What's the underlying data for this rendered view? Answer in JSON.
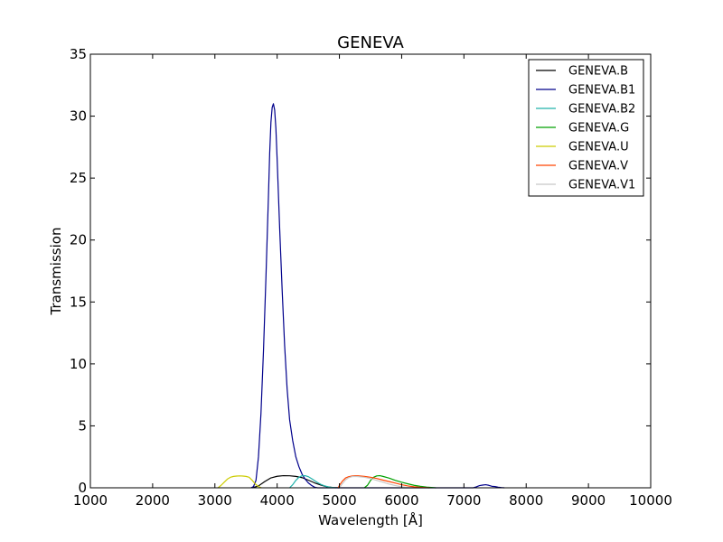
{
  "chart_data": {
    "type": "line",
    "title": "GENEVA",
    "xlabel": "Wavelength [Å]",
    "ylabel": "Transmission",
    "xlim": [
      1000,
      10000
    ],
    "ylim": [
      0,
      35
    ],
    "xticks": [
      1000,
      2000,
      3000,
      4000,
      5000,
      6000,
      7000,
      8000,
      9000,
      10000
    ],
    "yticks": [
      0,
      5,
      10,
      15,
      20,
      25,
      30,
      35
    ],
    "grid": false,
    "legend_position": "top-right",
    "series": [
      {
        "name": "GENEVA.B",
        "color": "#000000",
        "points": [
          [
            3600,
            0
          ],
          [
            3700,
            0.15
          ],
          [
            3800,
            0.5
          ],
          [
            3900,
            0.8
          ],
          [
            4000,
            0.93
          ],
          [
            4100,
            0.98
          ],
          [
            4200,
            0.97
          ],
          [
            4300,
            0.92
          ],
          [
            4400,
            0.82
          ],
          [
            4500,
            0.62
          ],
          [
            4600,
            0.4
          ],
          [
            4700,
            0.22
          ],
          [
            4800,
            0.08
          ],
          [
            4900,
            0.02
          ],
          [
            5000,
            0
          ]
        ]
      },
      {
        "name": "GENEVA.B1",
        "color": "#00008b",
        "points": [
          [
            3580,
            0
          ],
          [
            3620,
            0.1
          ],
          [
            3660,
            0.6
          ],
          [
            3700,
            2.5
          ],
          [
            3740,
            6
          ],
          [
            3780,
            11
          ],
          [
            3820,
            17
          ],
          [
            3860,
            23.5
          ],
          [
            3880,
            27
          ],
          [
            3900,
            29.5
          ],
          [
            3920,
            30.7
          ],
          [
            3940,
            31
          ],
          [
            3960,
            30.5
          ],
          [
            3980,
            29
          ],
          [
            4000,
            26.5
          ],
          [
            4040,
            21
          ],
          [
            4080,
            16
          ],
          [
            4120,
            11.5
          ],
          [
            4160,
            8
          ],
          [
            4200,
            5.5
          ],
          [
            4250,
            3.8
          ],
          [
            4300,
            2.5
          ],
          [
            4350,
            1.7
          ],
          [
            4400,
            1.1
          ],
          [
            4450,
            0.7
          ],
          [
            4500,
            0.4
          ],
          [
            4550,
            0.2
          ],
          [
            4600,
            0.05
          ],
          [
            4650,
            0
          ],
          [
            7150,
            0
          ],
          [
            7200,
            0.08
          ],
          [
            7250,
            0.18
          ],
          [
            7300,
            0.22
          ],
          [
            7350,
            0.25
          ],
          [
            7400,
            0.2
          ],
          [
            7450,
            0.12
          ],
          [
            7500,
            0.1
          ],
          [
            7550,
            0.05
          ],
          [
            7600,
            0.02
          ],
          [
            7650,
            0
          ]
        ]
      },
      {
        "name": "GENEVA.B2",
        "color": "#20b2aa",
        "points": [
          [
            4200,
            0
          ],
          [
            4250,
            0.25
          ],
          [
            4300,
            0.6
          ],
          [
            4350,
            0.85
          ],
          [
            4400,
            0.97
          ],
          [
            4450,
            0.98
          ],
          [
            4500,
            0.9
          ],
          [
            4550,
            0.75
          ],
          [
            4600,
            0.58
          ],
          [
            4650,
            0.42
          ],
          [
            4700,
            0.28
          ],
          [
            4750,
            0.18
          ],
          [
            4800,
            0.1
          ],
          [
            4850,
            0.05
          ],
          [
            4900,
            0.02
          ],
          [
            4950,
            0
          ]
        ]
      },
      {
        "name": "GENEVA.G",
        "color": "#00a000",
        "points": [
          [
            5400,
            0
          ],
          [
            5450,
            0.2
          ],
          [
            5500,
            0.6
          ],
          [
            5550,
            0.85
          ],
          [
            5600,
            0.96
          ],
          [
            5650,
            0.98
          ],
          [
            5700,
            0.92
          ],
          [
            5800,
            0.78
          ],
          [
            5900,
            0.6
          ],
          [
            6000,
            0.45
          ],
          [
            6100,
            0.32
          ],
          [
            6200,
            0.2
          ],
          [
            6300,
            0.12
          ],
          [
            6400,
            0.06
          ],
          [
            6500,
            0.02
          ],
          [
            6550,
            0
          ]
        ]
      },
      {
        "name": "GENEVA.U",
        "color": "#cccc00",
        "points": [
          [
            3050,
            0
          ],
          [
            3100,
            0.2
          ],
          [
            3150,
            0.45
          ],
          [
            3200,
            0.7
          ],
          [
            3250,
            0.85
          ],
          [
            3300,
            0.92
          ],
          [
            3350,
            0.95
          ],
          [
            3400,
            0.96
          ],
          [
            3450,
            0.95
          ],
          [
            3500,
            0.92
          ],
          [
            3550,
            0.85
          ],
          [
            3600,
            0.6
          ],
          [
            3650,
            0.3
          ],
          [
            3700,
            0.1
          ],
          [
            3750,
            0
          ]
        ]
      },
      {
        "name": "GENEVA.V",
        "color": "#ff4500",
        "points": [
          [
            4980,
            0
          ],
          [
            5000,
            0.2
          ],
          [
            5050,
            0.55
          ],
          [
            5100,
            0.8
          ],
          [
            5150,
            0.9
          ],
          [
            5200,
            0.95
          ],
          [
            5250,
            0.98
          ],
          [
            5300,
            0.97
          ],
          [
            5400,
            0.92
          ],
          [
            5500,
            0.85
          ],
          [
            5600,
            0.75
          ],
          [
            5700,
            0.62
          ],
          [
            5800,
            0.5
          ],
          [
            5900,
            0.38
          ],
          [
            6000,
            0.25
          ],
          [
            6100,
            0.15
          ],
          [
            6200,
            0.08
          ],
          [
            6300,
            0.04
          ],
          [
            6400,
            0.01
          ],
          [
            6450,
            0
          ]
        ]
      },
      {
        "name": "GENEVA.V1",
        "color": "#c8c8c8",
        "points": [
          [
            5000,
            0
          ],
          [
            5050,
            0.35
          ],
          [
            5100,
            0.65
          ],
          [
            5150,
            0.82
          ],
          [
            5200,
            0.9
          ],
          [
            5250,
            0.92
          ],
          [
            5300,
            0.9
          ],
          [
            5400,
            0.85
          ],
          [
            5500,
            0.75
          ],
          [
            5600,
            0.6
          ],
          [
            5700,
            0.45
          ],
          [
            5800,
            0.3
          ],
          [
            5900,
            0.18
          ],
          [
            6000,
            0.08
          ],
          [
            6100,
            0.02
          ],
          [
            6150,
            0
          ]
        ]
      }
    ]
  }
}
